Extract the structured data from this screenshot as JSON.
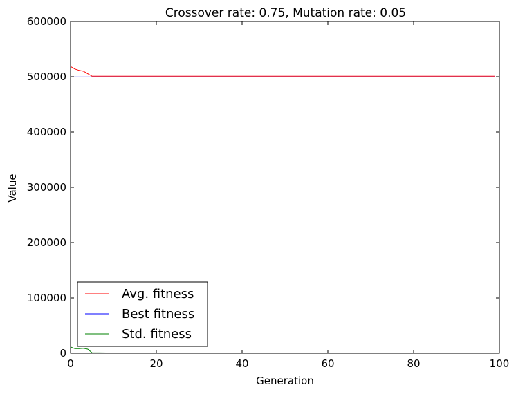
{
  "chart_data": {
    "type": "line",
    "title": "Crossover rate: 0.75, Mutation rate: 0.05",
    "xlabel": "Generation",
    "ylabel": "Value",
    "xlim": [
      0,
      100
    ],
    "ylim": [
      0,
      600000
    ],
    "xticks": [
      0,
      20,
      40,
      60,
      80,
      100
    ],
    "yticks": [
      0,
      100000,
      200000,
      300000,
      400000,
      500000,
      600000
    ],
    "x_tick_labels": [
      "0",
      "20",
      "40",
      "60",
      "80",
      "100"
    ],
    "y_tick_labels": [
      "0",
      "100000",
      "200000",
      "300000",
      "400000",
      "500000",
      "600000"
    ],
    "grid": false,
    "legend_position": "lower-left",
    "series": [
      {
        "name": "Avg. fitness",
        "color": "#ff0000",
        "points": [
          [
            0,
            518500
          ],
          [
            1,
            514000
          ],
          [
            2,
            511500
          ],
          [
            3,
            510000
          ],
          [
            4,
            505500
          ],
          [
            5,
            501000
          ],
          [
            10,
            501000
          ],
          [
            20,
            501000
          ],
          [
            40,
            501000
          ],
          [
            60,
            501000
          ],
          [
            80,
            501000
          ],
          [
            99,
            501000
          ]
        ]
      },
      {
        "name": "Best fitness",
        "color": "#0000ff",
        "points": [
          [
            0,
            499500
          ],
          [
            20,
            499500
          ],
          [
            40,
            499500
          ],
          [
            60,
            499500
          ],
          [
            80,
            499500
          ],
          [
            99,
            499500
          ]
        ]
      },
      {
        "name": "Std. fitness",
        "color": "#008000",
        "points": [
          [
            0,
            11500
          ],
          [
            1,
            8500
          ],
          [
            2,
            8500
          ],
          [
            3,
            9000
          ],
          [
            4,
            7500
          ],
          [
            5,
            1000
          ],
          [
            10,
            500
          ],
          [
            20,
            500
          ],
          [
            40,
            500
          ],
          [
            60,
            500
          ],
          [
            80,
            500
          ],
          [
            99,
            500
          ]
        ]
      }
    ]
  }
}
